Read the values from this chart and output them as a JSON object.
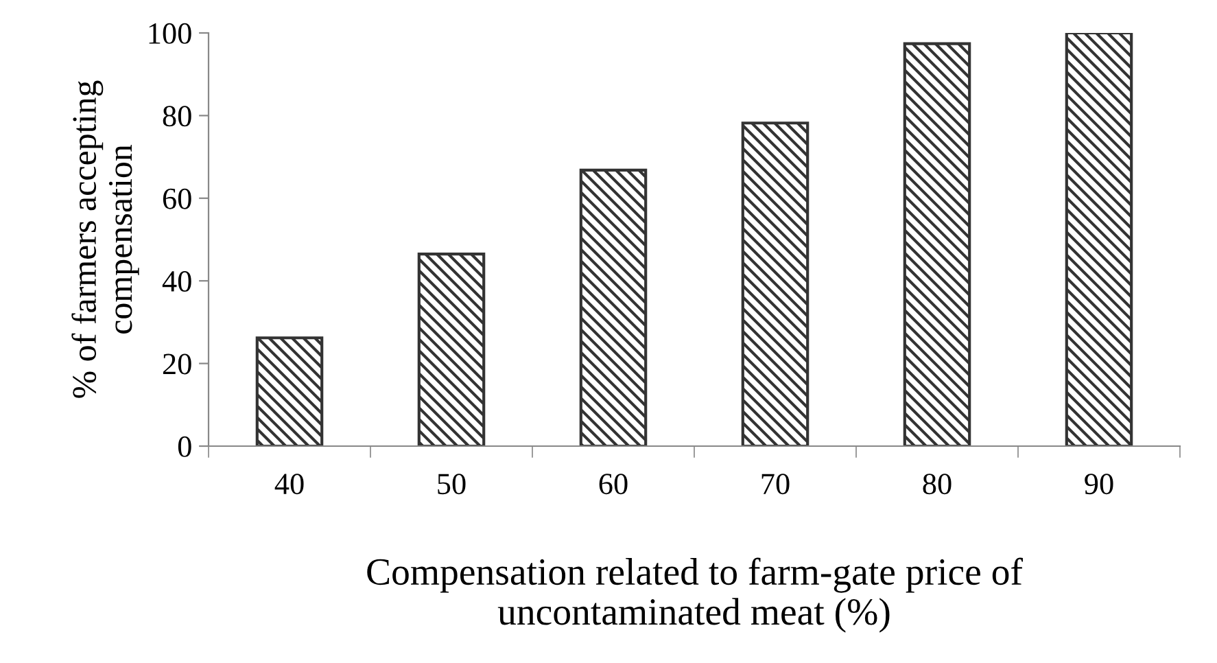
{
  "chart_data": {
    "type": "bar",
    "xlabel": "Compensation related to farm-gate price of\nuncontaminated meat (%)",
    "ylabel": "% of farmers accepting compensation",
    "categories": [
      "40",
      "50",
      "60",
      "70",
      "80",
      "90"
    ],
    "values": [
      26.2,
      46.5,
      66.8,
      78.2,
      97.4,
      100
    ],
    "color": "#333333",
    "ylim": [
      0,
      100
    ],
    "yticks": [
      0,
      20,
      40,
      60,
      80,
      100
    ],
    "grid": false,
    "legend": false
  }
}
